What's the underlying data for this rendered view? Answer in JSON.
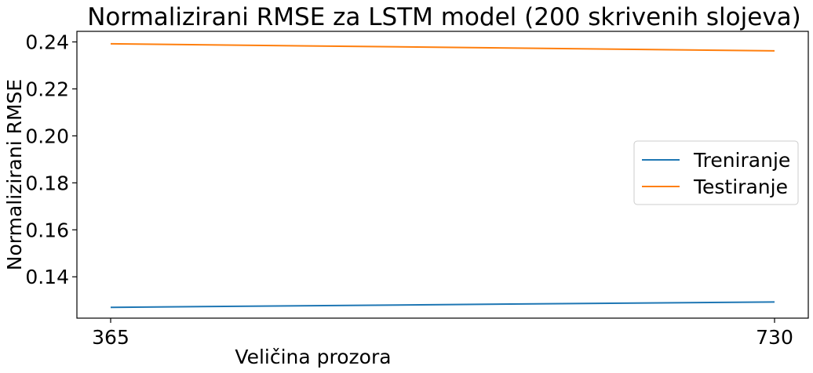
{
  "chart_data": {
    "type": "line",
    "title": "Normalizirani RMSE za LSTM model (200 skrivenih slojeva)",
    "xlabel": "Veličina prozora",
    "ylabel": "Normalizirani RMSE",
    "x": [
      365,
      730
    ],
    "x_tick_labels": [
      "365",
      "730"
    ],
    "y_ticks": [
      0.14,
      0.16,
      0.18,
      0.2,
      0.22,
      0.24
    ],
    "y_tick_labels": [
      "0.14",
      "0.16",
      "0.18",
      "0.20",
      "0.22",
      "0.24"
    ],
    "ylim": [
      0.1224,
      0.2445
    ],
    "grid": false,
    "legend_position": "center-right",
    "series": [
      {
        "name": "Treniranje",
        "color": "#1f77b4",
        "values": [
          0.127,
          0.1293
        ]
      },
      {
        "name": "Testiranje",
        "color": "#ff7f0e",
        "values": [
          0.2392,
          0.2362
        ]
      }
    ]
  }
}
